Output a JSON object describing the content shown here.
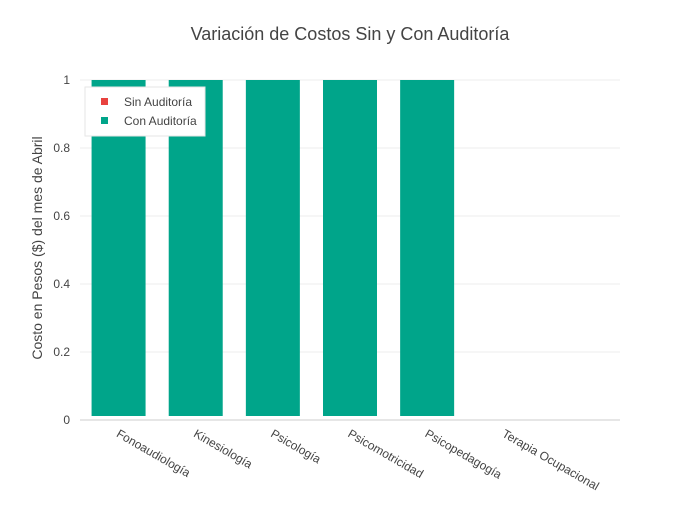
{
  "chart_data": {
    "type": "bar",
    "barmode": "stack",
    "title": "Variación de Costos Sin y Con Auditoría",
    "xlabel": "",
    "ylabel": "Costo en Pesos ($) del mes de Abril",
    "categories": [
      "Fonoaudiología",
      "Kinesiología",
      "Psicología",
      "Psicomotricidad",
      "Psicopedagogía",
      "Terapia Ocupacional"
    ],
    "series": [
      {
        "name": "Sin Auditoría",
        "color": "#e8423f",
        "values": [
          0,
          0,
          0,
          0,
          0,
          0
        ]
      },
      {
        "name": "Con Auditoría",
        "color": "#00a58a",
        "values": [
          1,
          1,
          1,
          1,
          1,
          0
        ]
      }
    ],
    "ylim": [
      0,
      1
    ],
    "yticks": [
      "0",
      "0.2",
      "0.4",
      "0.6",
      "0.8",
      "1"
    ],
    "ytick_values": [
      0,
      0.2,
      0.4,
      0.6,
      0.8,
      1
    ],
    "grid": true,
    "legend_position": "top-left"
  }
}
